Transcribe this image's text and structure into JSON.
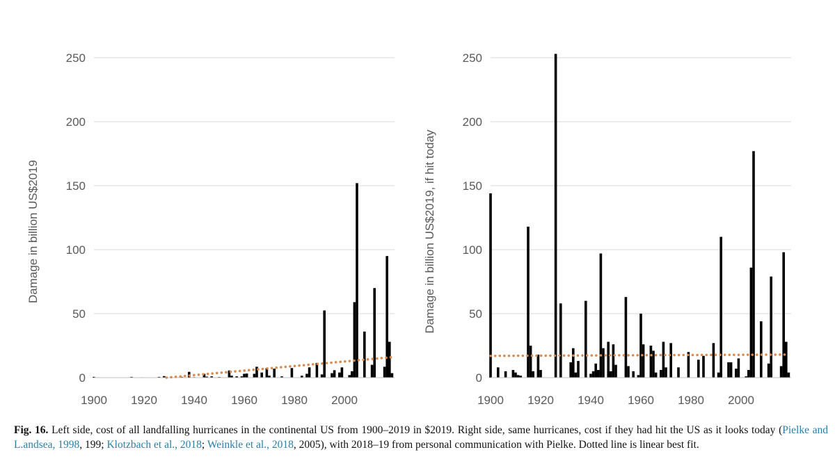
{
  "chart_data": [
    {
      "type": "bar",
      "ylabel": "Damage in billion US$2019",
      "xlabel": "",
      "ylim": [
        0,
        250
      ],
      "yticks": [
        0,
        50,
        100,
        150,
        200,
        250
      ],
      "xlim": [
        1900,
        2020
      ],
      "xticks": [
        1900,
        1920,
        1940,
        1960,
        1980,
        2000
      ],
      "grid": true,
      "bar_color": "#000000",
      "trend_color": "#d98a4f",
      "trend": {
        "style": "dotted",
        "fit": "linear",
        "x": [
          1929,
          2019
        ],
        "y": [
          0,
          16
        ]
      },
      "x": [
        1900,
        1915,
        1919,
        1926,
        1928,
        1935,
        1938,
        1940,
        1944,
        1945,
        1947,
        1950,
        1954,
        1955,
        1957,
        1959,
        1960,
        1961,
        1964,
        1965,
        1967,
        1969,
        1970,
        1972,
        1975,
        1979,
        1983,
        1985,
        1986,
        1989,
        1991,
        1992,
        1995,
        1996,
        1998,
        1999,
        2002,
        2003,
        2004,
        2005,
        2008,
        2011,
        2012,
        2016,
        2017,
        2018,
        2019
      ],
      "values": [
        0.6,
        0.6,
        0.3,
        0.6,
        1.2,
        0.6,
        4.5,
        0.4,
        3.0,
        0.8,
        1.0,
        0.5,
        5.6,
        1.5,
        1.0,
        1.0,
        3.0,
        3.2,
        3.0,
        8.5,
        4.0,
        7.5,
        1.5,
        7.0,
        1.0,
        7.5,
        1.5,
        3.0,
        8.0,
        11.5,
        2.5,
        52.5,
        3.5,
        5.8,
        4.0,
        8.0,
        2.0,
        5.0,
        59.0,
        152.0,
        36.0,
        10.0,
        70.0,
        8.5,
        95.0,
        28.0,
        3.5
      ]
    },
    {
      "type": "bar",
      "ylabel": "Damage in billion US$2019, if hit today",
      "xlabel": "",
      "ylim": [
        0,
        250
      ],
      "yticks": [
        0,
        50,
        100,
        150,
        200,
        250
      ],
      "xlim": [
        1900,
        2020
      ],
      "xticks": [
        1900,
        1920,
        1940,
        1960,
        1980,
        2000
      ],
      "grid": true,
      "bar_color": "#000000",
      "trend_color": "#d98a4f",
      "trend": {
        "style": "dotted",
        "fit": "linear",
        "x": [
          1900,
          2019
        ],
        "y": [
          17,
          18
        ]
      },
      "x": [
        1900,
        1903,
        1906,
        1909,
        1910,
        1911,
        1912,
        1915,
        1916,
        1917,
        1919,
        1920,
        1926,
        1928,
        1932,
        1933,
        1934,
        1935,
        1938,
        1940,
        1941,
        1942,
        1943,
        1944,
        1945,
        1947,
        1948,
        1949,
        1950,
        1954,
        1955,
        1957,
        1959,
        1960,
        1961,
        1964,
        1965,
        1966,
        1968,
        1969,
        1970,
        1972,
        1975,
        1979,
        1983,
        1985,
        1989,
        1991,
        1992,
        1995,
        1996,
        1998,
        1999,
        2002,
        2003,
        2004,
        2005,
        2008,
        2011,
        2012,
        2016,
        2017,
        2018,
        2019
      ],
      "values": [
        144,
        8,
        5,
        6,
        4,
        2,
        1.5,
        118,
        25,
        5,
        18,
        6,
        253,
        58,
        12,
        23,
        4,
        13,
        60,
        3,
        5,
        11,
        6,
        97,
        23,
        28,
        5,
        26,
        10,
        63,
        9,
        5,
        2,
        50,
        26,
        25,
        21,
        4,
        6,
        28,
        8,
        27,
        8,
        20,
        14,
        17,
        27,
        4,
        110,
        12,
        12,
        7,
        15,
        1,
        6,
        86,
        177,
        44,
        11,
        79,
        9,
        98,
        28,
        4
      ]
    }
  ],
  "caption": {
    "label": "Fig. 16.",
    "text1": "Left side, cost of all landfalling hurricanes in the continental US from 1900–2019 in $2019. Right side, same hurricanes, cost if they had hit the US as it looks today (",
    "ref1": "Pielke and L.andsea, 1998",
    "text2": ", 199; ",
    "ref2": "Klotzbach et al., 2018",
    "text3": "; ",
    "ref3": "Weinkle et al., 2018",
    "text4": ", 2005), with 2018–19 from personal communication with Pielke. Dotted line is linear best fit."
  }
}
